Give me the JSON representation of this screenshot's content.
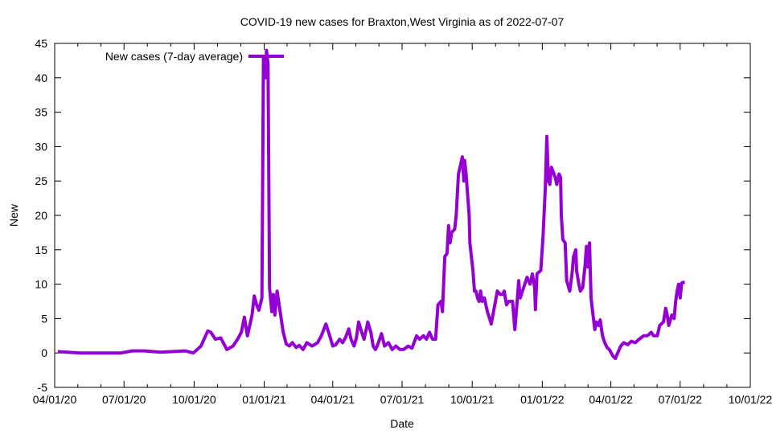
{
  "chart_data": {
    "type": "line",
    "title": "COVID-19 new cases for Braxton,West Virginia as of 2022-07-07",
    "xlabel": "Date",
    "ylabel": "New",
    "x_origin_date": "04/01/20",
    "x_unit": "days since 04/01/20",
    "xlim": [
      0,
      913
    ],
    "ylim": [
      -5,
      45
    ],
    "yticks": [
      -5,
      0,
      5,
      10,
      15,
      20,
      25,
      30,
      35,
      40,
      45
    ],
    "xticks": [
      {
        "day": 0,
        "label": "04/01/20"
      },
      {
        "day": 91,
        "label": "07/01/20"
      },
      {
        "day": 183,
        "label": "10/01/20"
      },
      {
        "day": 275,
        "label": "01/01/21"
      },
      {
        "day": 365,
        "label": "04/01/21"
      },
      {
        "day": 456,
        "label": "07/01/21"
      },
      {
        "day": 548,
        "label": "10/01/21"
      },
      {
        "day": 640,
        "label": "01/01/22"
      },
      {
        "day": 730,
        "label": "04/01/22"
      },
      {
        "day": 821,
        "label": "07/01/22"
      },
      {
        "day": 913,
        "label": "10/01/22"
      }
    ],
    "grid": false,
    "legend_position": "top-left",
    "series": [
      {
        "name": "New cases (7-day average)",
        "color": "#9400d3",
        "x": [
          4,
          34,
          87,
          102,
          118,
          139,
          171,
          182,
          192,
          201,
          205,
          211,
          218,
          226,
          234,
          240,
          245,
          249,
          253,
          259,
          262,
          265,
          268,
          272,
          274,
          277,
          278,
          280,
          282,
          285,
          287,
          289,
          292,
          296,
          300,
          304,
          308,
          312,
          317,
          321,
          326,
          331,
          338,
          345,
          350,
          356,
          361,
          365,
          369,
          374,
          378,
          382,
          386,
          389,
          393,
          396,
          399,
          403,
          406,
          411,
          415,
          418,
          421,
          424,
          429,
          433,
          438,
          443,
          448,
          453,
          458,
          464,
          469,
          475,
          479,
          484,
          488,
          492,
          496,
          500,
          503,
          507,
          509,
          512,
          515,
          517,
          519,
          521,
          525,
          527,
          530,
          533,
          535,
          537,
          538,
          540,
          544,
          545,
          547,
          549,
          551,
          553,
          555,
          557,
          559,
          561,
          564,
          568,
          573,
          576,
          581,
          585,
          588,
          590,
          593,
          596,
          601,
          604,
          607,
          609,
          611,
          614,
          620,
          624,
          627,
          630,
          631,
          633,
          638,
          641,
          644,
          646,
          648,
          650,
          652,
          657,
          659,
          662,
          664,
          665,
          667,
          670,
          672,
          676,
          679,
          681,
          684,
          685,
          688,
          690,
          693,
          696,
          698,
          700,
          702,
          704,
          706,
          709,
          711,
          714,
          716,
          719,
          722,
          725,
          728,
          733,
          736,
          739,
          743,
          747,
          752,
          757,
          762,
          767,
          773,
          778,
          783,
          786,
          791,
          794,
          799,
          802,
          804,
          806,
          810,
          813,
          815,
          817,
          819,
          821,
          823,
          827
        ],
        "y": [
          0.2,
          0,
          0,
          0.3,
          0.3,
          0.1,
          0.3,
          0,
          1.0,
          3.2,
          3.0,
          2.0,
          2.2,
          0.5,
          1.0,
          2.0,
          3.0,
          5.2,
          2.5,
          5.5,
          8.3,
          7.0,
          6.2,
          8.0,
          43,
          40,
          44,
          42,
          9.5,
          6.0,
          8.5,
          5.5,
          9.0,
          6.0,
          3.0,
          1.3,
          1.0,
          1.5,
          0.8,
          1.1,
          0.5,
          1.5,
          1.0,
          1.5,
          2.5,
          4.2,
          2.5,
          1.0,
          1.2,
          2.0,
          1.5,
          2.3,
          3.5,
          2.0,
          1.0,
          2.2,
          4.5,
          3.0,
          2.0,
          4.5,
          3.0,
          1.0,
          0.5,
          1.2,
          2.8,
          1.0,
          1.5,
          0.5,
          1.0,
          0.5,
          0.5,
          1.0,
          0.7,
          2.5,
          2.0,
          2.5,
          2.0,
          3.0,
          2.0,
          2.0,
          7.0,
          7.5,
          6.0,
          14,
          14.5,
          18.5,
          16,
          17.5,
          18,
          20,
          26,
          27.5,
          28.5,
          25,
          28,
          26,
          20,
          16,
          14,
          12,
          9.0,
          9.0,
          8.0,
          7.5,
          9.0,
          7.5,
          8.0,
          6.0,
          4.2,
          6.0,
          9.0,
          8.5,
          8.5,
          9.0,
          7.0,
          7.5,
          7.5,
          3.4,
          7.5,
          10.5,
          8.0,
          9.0,
          11.0,
          10.0,
          11.5,
          9.5,
          6.3,
          11.5,
          12.0,
          17,
          24,
          31.5,
          25,
          24.5,
          27,
          25.5,
          24.5,
          26,
          25.5,
          20,
          16.5,
          16,
          10.5,
          9.0,
          11.5,
          14,
          15,
          12,
          10.0,
          9.0,
          9.5,
          12.5,
          15.5,
          12.5,
          16,
          8.0,
          6.0,
          3.4,
          4.5,
          4.0,
          4.8,
          2.5,
          1.5,
          0.8,
          0.5,
          -0.5,
          -0.8,
          0.0,
          1.0,
          1.5,
          1.2,
          1.7,
          1.5,
          2.0,
          2.5,
          2.5,
          3.0,
          2.5,
          2.5,
          4.0,
          4.5,
          6.5,
          5.5,
          4.0,
          5.5,
          5.0,
          7.5,
          9.0,
          10.0,
          8.0,
          10.2,
          10.3
        ]
      }
    ]
  }
}
